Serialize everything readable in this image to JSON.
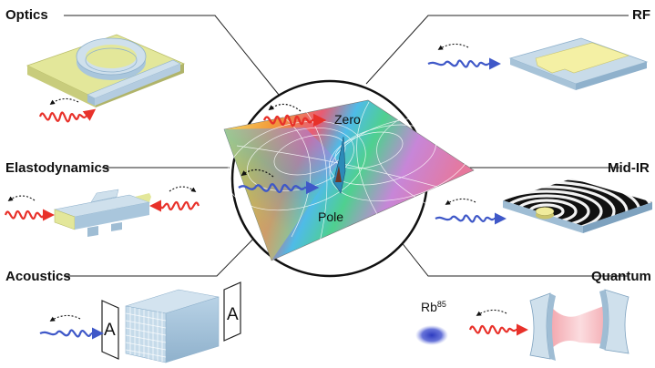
{
  "labels": {
    "optics": "Optics",
    "rf": "RF",
    "elastodynamics": "Elastodynamics",
    "mid_ir": "Mid-IR",
    "acoustics": "Acoustics",
    "quantum": "Quantum"
  },
  "center": {
    "zero": "Zero",
    "pole": "Pole"
  },
  "acoustic_screen_letter": "A",
  "quantum_atom": {
    "base": "Rb",
    "isotope": "85"
  },
  "colors": {
    "red_wave": "#e8312a",
    "blue_wave": "#3f58c8",
    "optics_substrate": "#e3e79a",
    "device_blue": "#b9d3e6",
    "rf_patch": "#f4f0a4",
    "atom": "#3c49c4"
  }
}
